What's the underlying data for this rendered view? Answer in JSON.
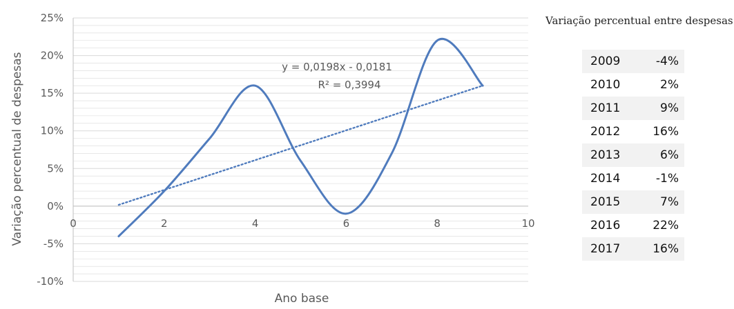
{
  "chart_data": {
    "type": "scatter",
    "title": "",
    "xlabel": "Ano base",
    "ylabel": "Variação percentual de despesas",
    "xlim": [
      0,
      10
    ],
    "ylim": [
      -0.1,
      0.25
    ],
    "x_ticks": [
      "0",
      "2",
      "4",
      "6",
      "8",
      "10"
    ],
    "y_ticks": [
      "25%",
      "20%",
      "15%",
      "10%",
      "5%",
      "0%",
      "-5%",
      "-10%"
    ],
    "series": [
      {
        "x": [
          1,
          2,
          3,
          4,
          5,
          6,
          7,
          8,
          9
        ],
        "values": [
          -0.04,
          0.02,
          0.09,
          0.16,
          0.06,
          -0.01,
          0.07,
          0.22,
          0.16
        ],
        "color": "#4f7bbd",
        "style": "smooth-line"
      }
    ],
    "trendline": {
      "type": "linear",
      "slope": 0.0198,
      "intercept": -0.0181,
      "x_range": [
        1,
        9
      ],
      "style": "dotted",
      "color": "#4f7bbd"
    },
    "equation_label": "y = 0,0198x - 0,0181",
    "r2_label": "R² = 0,3994",
    "grid": true,
    "gridline_color": "#d9d9d9"
  },
  "table": {
    "title": "Variação percentual entre despesas",
    "rows": [
      {
        "year": "2009",
        "pct": "-4%"
      },
      {
        "year": "2010",
        "pct": "2%"
      },
      {
        "year": "2011",
        "pct": "9%"
      },
      {
        "year": "2012",
        "pct": "16%"
      },
      {
        "year": "2013",
        "pct": "6%"
      },
      {
        "year": "2014",
        "pct": "-1%"
      },
      {
        "year": "2015",
        "pct": "7%"
      },
      {
        "year": "2016",
        "pct": "22%"
      },
      {
        "year": "2017",
        "pct": "16%"
      }
    ]
  }
}
